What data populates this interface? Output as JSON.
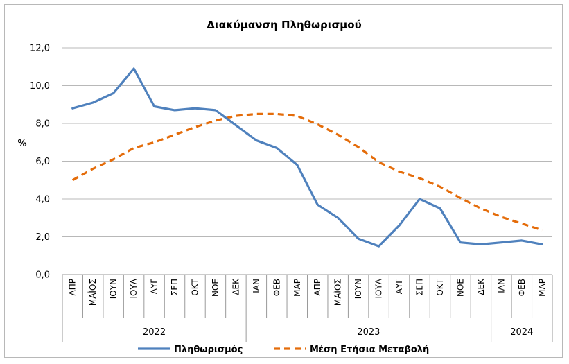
{
  "chart_data": {
    "type": "line",
    "title": "Διακύμανση Πληθωρισμού",
    "ylabel": "%",
    "ylim": [
      0,
      12
    ],
    "yticks": [
      "0,0",
      "2,0",
      "4,0",
      "6,0",
      "8,0",
      "10,0",
      "12,0"
    ],
    "grid": true,
    "legend_position": "bottom",
    "categories": [
      "ΑΠΡ",
      "ΜΑΪΟΣ",
      "ΙΟΥΝ",
      "ΙΟΥΛ",
      "ΑΥΓ",
      "ΣΕΠ",
      "ΟΚΤ",
      "ΝΟΕ",
      "ΔΕΚ",
      "ΙΑΝ",
      "ΦΕΒ",
      "ΜΑΡ",
      "ΑΠΡ",
      "ΜΑΪΟΣ",
      "ΙΟΥΝ",
      "ΙΟΥΛ",
      "ΑΥΓ",
      "ΣΕΠ",
      "ΟΚΤ",
      "ΝΟΕ",
      "ΔΕΚ",
      "ΙΑΝ",
      "ΦΕΒ",
      "ΜΑΡ"
    ],
    "year_groups": [
      {
        "label": "2022",
        "count": 9
      },
      {
        "label": "2023",
        "count": 12
      },
      {
        "label": "2024",
        "count": 3
      }
    ],
    "series": [
      {
        "name": "Πληθωρισμός",
        "color": "#4f81bd",
        "style": "solid",
        "values": [
          8.8,
          9.1,
          9.6,
          10.9,
          8.9,
          8.7,
          8.8,
          8.7,
          7.9,
          7.1,
          6.7,
          5.8,
          3.7,
          3.0,
          1.9,
          1.5,
          2.6,
          4.0,
          3.5,
          1.7,
          1.6,
          1.7,
          1.8,
          1.6
        ]
      },
      {
        "name": "Μέση Ετήσια Μεταβολή",
        "color": "#e46c0a",
        "style": "dashed",
        "values": [
          5.0,
          5.6,
          6.1,
          6.7,
          7.0,
          7.4,
          7.8,
          8.15,
          8.4,
          8.5,
          8.5,
          8.4,
          7.95,
          7.4,
          6.75,
          5.95,
          5.45,
          5.1,
          4.65,
          4.05,
          3.5,
          3.05,
          2.7,
          2.35
        ]
      }
    ]
  }
}
